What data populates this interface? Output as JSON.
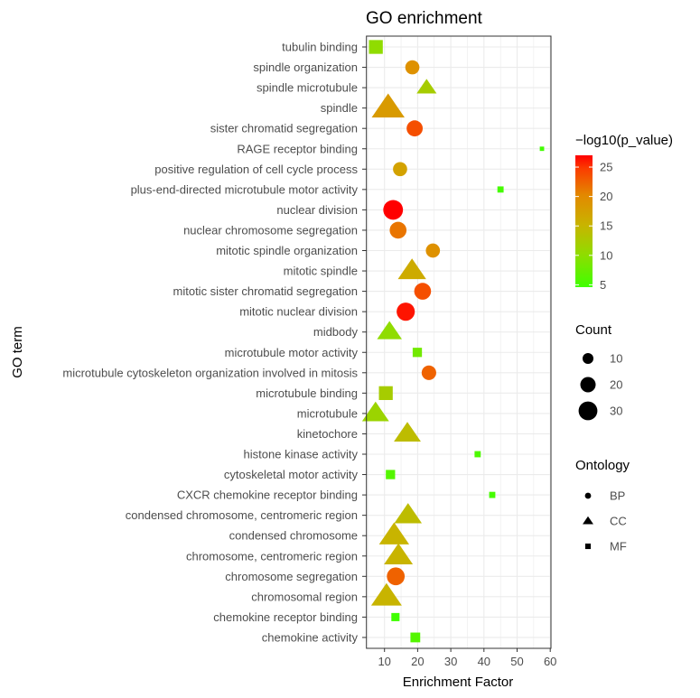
{
  "chart_data": {
    "type": "scatter",
    "title": "GO enrichment",
    "xlabel": "Enrichment Factor",
    "ylabel": "GO term",
    "xlim": [
      4.5,
      60
    ],
    "xticks": [
      "10",
      "20",
      "30",
      "40",
      "50",
      "60"
    ],
    "grid": true,
    "legend_position": "right",
    "color_legend": {
      "title": "−log10(p_value)",
      "ticks": [
        "25",
        "20",
        "15",
        "10",
        "5"
      ],
      "low_color": "#3fff00",
      "high_color": "#ff0000",
      "range": [
        4.6,
        27
      ]
    },
    "size_legend": {
      "title": "Count",
      "items": [
        "10",
        "20",
        "30"
      ]
    },
    "shape_legend": {
      "title": "Ontology",
      "items": [
        {
          "label": "BP",
          "shape": "circle"
        },
        {
          "label": "CC",
          "shape": "triangle"
        },
        {
          "label": "MF",
          "shape": "square"
        }
      ]
    },
    "points": [
      {
        "term": "tubulin binding",
        "x": 7.4,
        "ontology": "MF",
        "count": 20,
        "neglog10p": 10
      },
      {
        "term": "spindle organization",
        "x": 18.4,
        "ontology": "BP",
        "count": 17,
        "neglog10p": 19
      },
      {
        "term": "spindle microtubule",
        "x": 22.7,
        "ontology": "CC",
        "count": 11,
        "neglog10p": 12
      },
      {
        "term": "spindle",
        "x": 11.1,
        "ontology": "CC",
        "count": 30,
        "neglog10p": 18
      },
      {
        "term": "sister chromatid segregation",
        "x": 19.1,
        "ontology": "BP",
        "count": 22,
        "neglog10p": 23
      },
      {
        "term": "RAGE receptor binding",
        "x": 57.5,
        "ontology": "MF",
        "count": 2,
        "neglog10p": 4.7
      },
      {
        "term": "positive regulation of cell cycle process",
        "x": 14.7,
        "ontology": "BP",
        "count": 17,
        "neglog10p": 17
      },
      {
        "term": "plus-end-directed microtubule motor activity",
        "x": 45.0,
        "ontology": "MF",
        "count": 4,
        "neglog10p": 5
      },
      {
        "term": "nuclear division",
        "x": 12.6,
        "ontology": "BP",
        "count": 33,
        "neglog10p": 27
      },
      {
        "term": "nuclear chromosome segregation",
        "x": 14.1,
        "ontology": "BP",
        "count": 24,
        "neglog10p": 21
      },
      {
        "term": "mitotic spindle organization",
        "x": 24.6,
        "ontology": "BP",
        "count": 17,
        "neglog10p": 19
      },
      {
        "term": "mitotic spindle",
        "x": 18.3,
        "ontology": "CC",
        "count": 22,
        "neglog10p": 16
      },
      {
        "term": "mitotic sister chromatid segregation",
        "x": 21.5,
        "ontology": "BP",
        "count": 24,
        "neglog10p": 23
      },
      {
        "term": "mitotic nuclear division",
        "x": 16.4,
        "ontology": "BP",
        "count": 28,
        "neglog10p": 26
      },
      {
        "term": "midbody",
        "x": 11.5,
        "ontology": "CC",
        "count": 17,
        "neglog10p": 10
      },
      {
        "term": "microtubule motor activity",
        "x": 19.9,
        "ontology": "MF",
        "count": 9,
        "neglog10p": 8
      },
      {
        "term": "microtubule cytoskeleton organization involved in mitosis",
        "x": 23.4,
        "ontology": "BP",
        "count": 18,
        "neglog10p": 22
      },
      {
        "term": "microtubule binding",
        "x": 10.4,
        "ontology": "MF",
        "count": 20,
        "neglog10p": 12
      },
      {
        "term": "microtubule",
        "x": 7.3,
        "ontology": "CC",
        "count": 20,
        "neglog10p": 11
      },
      {
        "term": "kinetochore",
        "x": 16.9,
        "ontology": "CC",
        "count": 20,
        "neglog10p": 14
      },
      {
        "term": "histone kinase activity",
        "x": 38.1,
        "ontology": "MF",
        "count": 4,
        "neglog10p": 5.5
      },
      {
        "term": "cytoskeletal motor activity",
        "x": 11.8,
        "ontology": "MF",
        "count": 9,
        "neglog10p": 6
      },
      {
        "term": "CXCR chemokine receptor binding",
        "x": 42.5,
        "ontology": "MF",
        "count": 4,
        "neglog10p": 5
      },
      {
        "term": "condensed chromosome, centromeric region",
        "x": 17.1,
        "ontology": "CC",
        "count": 21,
        "neglog10p": 14
      },
      {
        "term": "condensed chromosome",
        "x": 12.9,
        "ontology": "CC",
        "count": 25,
        "neglog10p": 15
      },
      {
        "term": "chromosome, centromeric region",
        "x": 14.2,
        "ontology": "CC",
        "count": 23,
        "neglog10p": 15
      },
      {
        "term": "chromosome segregation",
        "x": 13.4,
        "ontology": "BP",
        "count": 27,
        "neglog10p": 22
      },
      {
        "term": "chromosomal region",
        "x": 10.6,
        "ontology": "CC",
        "count": 26,
        "neglog10p": 15
      },
      {
        "term": "chemokine receptor binding",
        "x": 13.3,
        "ontology": "MF",
        "count": 7,
        "neglog10p": 4.5
      },
      {
        "term": "chemokine activity",
        "x": 19.3,
        "ontology": "MF",
        "count": 10,
        "neglog10p": 6
      }
    ]
  }
}
